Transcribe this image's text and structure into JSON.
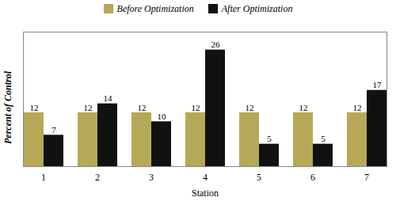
{
  "chart_data": {
    "type": "bar",
    "xlabel": "Station",
    "ylabel": "Percent of Control",
    "categories": [
      "1",
      "2",
      "3",
      "4",
      "5",
      "6",
      "7"
    ],
    "series": [
      {
        "name": "Before Optimization",
        "color": "#b5a958",
        "values": [
          12,
          12,
          12,
          12,
          12,
          12,
          12
        ]
      },
      {
        "name": "After Optimization",
        "color": "#111111",
        "values": [
          7,
          14,
          10,
          26,
          5,
          5,
          17
        ]
      }
    ],
    "ylim": [
      0,
      30
    ],
    "yticks": [],
    "grid": false,
    "data_labels": true,
    "tick_labels": "x",
    "legend": "top"
  }
}
